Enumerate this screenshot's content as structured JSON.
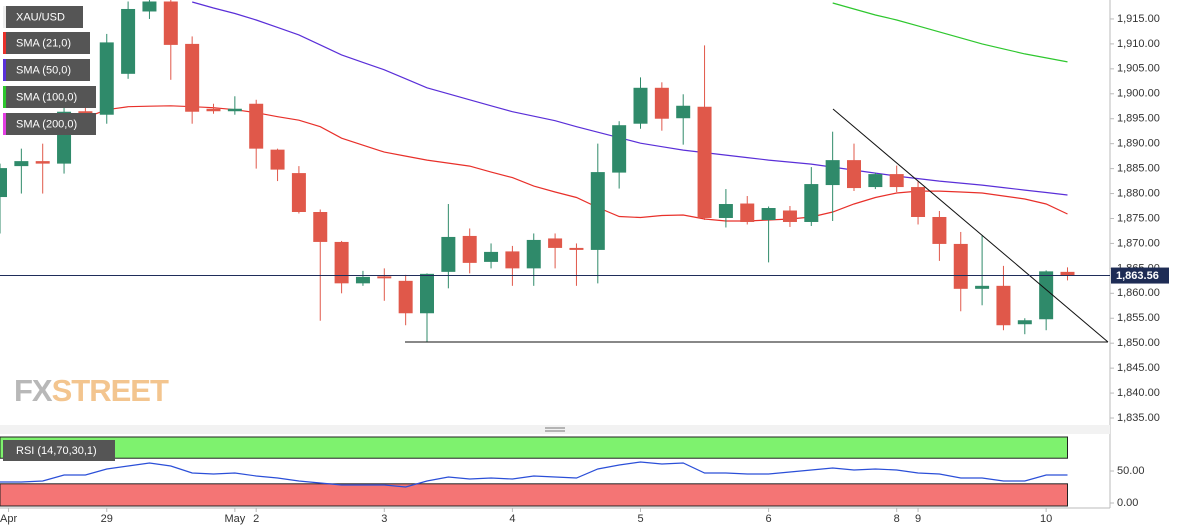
{
  "chart_data": [
    {
      "type": "candlestick",
      "name": "XAU/USD",
      "categories": [
        null,
        null,
        null,
        null,
        null,
        null,
        null,
        null,
        null,
        null,
        null,
        null,
        null,
        null,
        null,
        null,
        null,
        null,
        null,
        null,
        null,
        null,
        null,
        null,
        null,
        null,
        null,
        null,
        null,
        null,
        null,
        null,
        null,
        null,
        null,
        null,
        null,
        null,
        null,
        null,
        null,
        null,
        null,
        null,
        null,
        null,
        null,
        null,
        null,
        null,
        null
      ],
      "open": [
        1879.3,
        1885.5,
        1886.5,
        1886,
        1896.5,
        1895.8,
        1904,
        1916.5,
        1918.5,
        1910,
        1897,
        1896.5,
        1898,
        1888.8,
        1884.1,
        1876.3,
        1870.3,
        1862,
        1863.4,
        1862.5,
        1856,
        1864.3,
        1871.5,
        1866.3,
        1868.4,
        1865,
        1871,
        1869.1,
        1868.7,
        1884.2,
        1894,
        1901.2,
        1895.1,
        1897.4,
        1875.1,
        1878,
        1874.7,
        1876.6,
        1874.3,
        1881.7,
        1886.7,
        1881.3,
        1883.9,
        1881.3,
        1875.3,
        1869.9,
        1860.9,
        1861.5,
        1853.8,
        1854.8,
        1864.3
      ],
      "high": [
        1886,
        1889,
        1890,
        1897.5,
        1898,
        1912,
        1918.5,
        1918.8,
        1918.8,
        1911.5,
        1898,
        1899.5,
        1898.8,
        1889,
        1885.5,
        1876.8,
        1870.5,
        1864.5,
        1865,
        1863.7,
        1864,
        1877.9,
        1873,
        1870,
        1869.5,
        1872,
        1872,
        1870,
        1890,
        1894.5,
        1903.3,
        1902.3,
        1899.9,
        1909.7,
        1880.9,
        1879.5,
        1877.4,
        1877.5,
        1885.3,
        1892.4,
        1890,
        1884.2,
        1885.6,
        1882.5,
        1876.5,
        1872.3,
        1871.7,
        1865.5,
        1855,
        1864.6,
        1865.2
      ],
      "low": [
        1872,
        1880,
        1880,
        1884,
        1892,
        1894,
        1903,
        1915,
        1902.8,
        1894,
        1896,
        1895.8,
        1885,
        1882.5,
        1876,
        1854.5,
        1860,
        1861.5,
        1858.5,
        1853.6,
        1850.2,
        1861,
        1864,
        1865,
        1861.5,
        1861.5,
        1865,
        1861.5,
        1862,
        1881,
        1893,
        1892.6,
        1889.8,
        1874.7,
        1873.2,
        1873.8,
        1866.2,
        1873.3,
        1873.5,
        1874.5,
        1880.5,
        1880.9,
        1880.3,
        1873.8,
        1866.5,
        1856.4,
        1857.6,
        1852.6,
        1851.8,
        1852.6,
        1862.6
      ],
      "close": [
        1885.1,
        1886.5,
        1886,
        1896.4,
        1893,
        1910.3,
        1917,
        1918.5,
        1909.8,
        1896.4,
        1896.5,
        1897,
        1889,
        1884.8,
        1876.3,
        1870.3,
        1862,
        1863.3,
        1863,
        1856,
        1863.9,
        1871.3,
        1866.1,
        1868.3,
        1865,
        1870.7,
        1869.1,
        1868.7,
        1884.3,
        1893.7,
        1901.2,
        1895,
        1897.6,
        1875.1,
        1877.9,
        1874.3,
        1877.1,
        1874.3,
        1881.9,
        1886.7,
        1881.1,
        1883.9,
        1881.3,
        1875.3,
        1869.9,
        1860.9,
        1861.5,
        1853.6,
        1854.6,
        1864.4,
        1863.56
      ],
      "up_color": "#2f8a6a",
      "down_color": "#e0584a",
      "series": [
        {
          "name": "SMA (21,0)",
          "color": "#e8302a",
          "values": [
            null,
            null,
            null,
            null,
            1895.2,
            1896.8,
            1897.4,
            1897.5,
            1897.6,
            1897.4,
            1897.2,
            1896.8,
            1896.2,
            1895.4,
            1894.7,
            1893.4,
            1891.1,
            1889.7,
            1888.3,
            1887.5,
            1886.7,
            1886.1,
            1885.5,
            1884.3,
            1883.2,
            1881.5,
            1880.3,
            1879.2,
            1877.2,
            1875.4,
            1875.2,
            1875.6,
            1875.7,
            1874.9,
            1874.5,
            1874.5,
            1874.7,
            1874.9,
            1875.3,
            1876.3,
            1877.9,
            1879.2,
            1880.1,
            1880.5,
            1880.5,
            1880.3,
            1880.1,
            1879.5,
            1878.9,
            1877.9,
            1875.9
          ]
        },
        {
          "name": "SMA (50,0)",
          "color": "#5a2fd8",
          "values": [
            null,
            null,
            null,
            null,
            null,
            null,
            null,
            null,
            null,
            1918.4,
            1917.2,
            1916.1,
            1914.8,
            1913.3,
            1911.8,
            1909.8,
            1907.8,
            1906.3,
            1904.8,
            1903.0,
            1901.2,
            1900.0,
            1898.8,
            1897.6,
            1896.4,
            1895.5,
            1894.6,
            1893.4,
            1892.3,
            1891.2,
            1890.1,
            1889.4,
            1888.7,
            1888.2,
            1887.7,
            1887.2,
            1886.7,
            1886.3,
            1885.9,
            1885.3,
            1884.7,
            1884.1,
            1883.5,
            1883.0,
            1882.5,
            1882.1,
            1881.7,
            1881.2,
            1880.7,
            1880.2,
            1879.7
          ]
        },
        {
          "name": "SMA (100,0)",
          "color": "#2ec72e",
          "values": [
            null,
            null,
            null,
            null,
            null,
            null,
            null,
            null,
            null,
            null,
            null,
            null,
            null,
            null,
            null,
            null,
            null,
            null,
            null,
            null,
            null,
            null,
            null,
            null,
            null,
            null,
            null,
            null,
            null,
            null,
            null,
            null,
            null,
            null,
            null,
            null,
            null,
            null,
            null,
            1918.2,
            1917.0,
            1915.8,
            1914.8,
            1913.6,
            1912.4,
            1911.2,
            1910.0,
            1909.0,
            1908.0,
            1907.2,
            1906.4
          ]
        },
        {
          "name": "SMA (200,0)",
          "color": "#e23ee2",
          "values": [
            null,
            null,
            null,
            null,
            null,
            null,
            null,
            null,
            null,
            null,
            null,
            null,
            null,
            null,
            null,
            null,
            null,
            null,
            null,
            null,
            null,
            null,
            null,
            null,
            null,
            null,
            null,
            null,
            null,
            null,
            null,
            null,
            null,
            null,
            null,
            null,
            null,
            null,
            null,
            null,
            null,
            null,
            null,
            null,
            null,
            null,
            null,
            null,
            null,
            null,
            null
          ]
        }
      ],
      "ylim": [
        1833.6,
        1918.8
      ],
      "yticks": [
        {
          "value": 1835,
          "label": "1,835.00"
        },
        {
          "value": 1840,
          "label": "1,840.00"
        },
        {
          "value": 1845,
          "label": "1,845.00"
        },
        {
          "value": 1850,
          "label": "1,850.00"
        },
        {
          "value": 1855,
          "label": "1,855.00"
        },
        {
          "value": 1860,
          "label": "1,860.00"
        },
        {
          "value": 1865,
          "label": "1,865.00"
        },
        {
          "value": 1870,
          "label": "1,870.00"
        },
        {
          "value": 1875,
          "label": "1,875.00"
        },
        {
          "value": 1880,
          "label": "1,880.00"
        },
        {
          "value": 1885,
          "label": "1,885.00"
        },
        {
          "value": 1890,
          "label": "1,890.00"
        },
        {
          "value": 1895,
          "label": "1,895.00"
        },
        {
          "value": 1900,
          "label": "1,900.00"
        },
        {
          "value": 1905,
          "label": "1,905.00"
        },
        {
          "value": 1910,
          "label": "1,910.00"
        },
        {
          "value": 1915,
          "label": "1,915.00"
        }
      ],
      "last_price": {
        "value": 1863.56,
        "label": "1,863.56"
      },
      "watermark": {
        "fx": "FX",
        "street": "STREET"
      }
    },
    {
      "type": "line",
      "name": "RSI (14,70,30,1)",
      "color": "#2b4fd8",
      "values": [
        32.8,
        32.8,
        34.4,
        43.8,
        43.8,
        53.1,
        57.8,
        62.5,
        57.8,
        46.9,
        45.3,
        46.9,
        42.2,
        39.1,
        34.4,
        31.3,
        28.1,
        28.1,
        28.1,
        25,
        34.4,
        40.6,
        37.5,
        39.1,
        37.5,
        42.2,
        40.6,
        39.1,
        53.1,
        59.4,
        64.1,
        60.9,
        62.5,
        46.9,
        46.9,
        45.3,
        45.3,
        48.4,
        51.6,
        54.7,
        51.6,
        53.1,
        51.6,
        46.9,
        45.3,
        39.1,
        39.1,
        34.4,
        34.4,
        43.8,
        43.8
      ],
      "upper_band": 70,
      "lower_band": 30,
      "ylim": [
        -7.8,
        106.3
      ],
      "yticks": [
        {
          "value": 0,
          "label": "0.00"
        },
        {
          "value": 50,
          "label": "50.00"
        }
      ],
      "xticks": [
        {
          "value": 0.4,
          "label": "Apr"
        },
        {
          "value": 5,
          "label": "29"
        },
        {
          "value": 11,
          "label": "May"
        },
        {
          "value": 12,
          "label": "2"
        },
        {
          "value": 18,
          "label": "3"
        },
        {
          "value": 24,
          "label": "4"
        },
        {
          "value": 30,
          "label": "5"
        },
        {
          "value": 36,
          "label": "6"
        },
        {
          "value": 42,
          "label": "8"
        },
        {
          "value": 43,
          "label": "9"
        },
        {
          "value": 49,
          "label": "10"
        }
      ]
    }
  ]
}
